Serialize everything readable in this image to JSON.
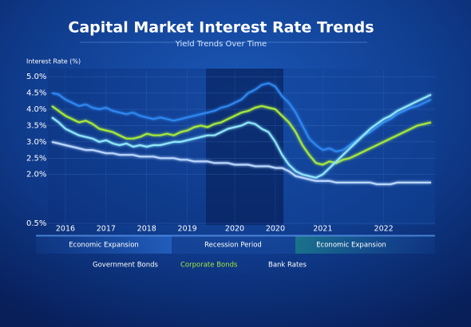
{
  "chart_data": {
    "type": "line",
    "title": "Capital Market Interest Rate Trends",
    "subtitle": "Yield Trends Over Time",
    "y_label": "Interest Rate (%)",
    "categories": [
      null,
      null,
      "2016",
      null,
      null,
      null,
      null,
      null,
      "2017",
      null,
      null,
      null,
      null,
      null,
      "2018",
      null,
      null,
      null,
      null,
      null,
      "2019",
      null,
      null,
      null,
      null,
      null,
      null,
      "2020",
      null,
      null,
      null,
      null,
      null,
      "2020",
      null,
      null,
      null,
      null,
      null,
      null,
      "2021",
      null,
      null,
      null,
      null,
      null,
      null,
      null,
      null,
      "2022",
      null,
      null,
      null,
      null,
      null,
      null,
      null
    ],
    "ylim": [
      0.5,
      5.2
    ],
    "yticks": [
      {
        "value": 5.0,
        "label": "5.0%"
      },
      {
        "value": 4.5,
        "label": "4.5%"
      },
      {
        "value": 4.0,
        "label": "4.0%"
      },
      {
        "value": 3.5,
        "label": "3.5%"
      },
      {
        "value": 3.0,
        "label": "3.0%"
      },
      {
        "value": 2.5,
        "label": "2.5%"
      },
      {
        "value": 2.0,
        "label": "2.0%"
      },
      {
        "value": 0.5,
        "label": "0.5%"
      }
    ],
    "grid": true,
    "annotations": [
      "Economic Expansion",
      "Recession Period",
      "Economic Expansion"
    ],
    "series": [
      {
        "name": "Government Bonds",
        "color": "#2f86f0",
        "values": [
          4.5,
          4.45,
          4.3,
          4.2,
          4.1,
          4.15,
          4.05,
          4.0,
          4.05,
          3.95,
          3.9,
          3.85,
          3.9,
          3.8,
          3.75,
          3.7,
          3.75,
          3.7,
          3.65,
          3.7,
          3.75,
          3.8,
          3.85,
          3.9,
          3.95,
          4.05,
          4.1,
          4.2,
          4.3,
          4.5,
          4.6,
          4.75,
          4.8,
          4.7,
          4.4,
          4.2,
          3.9,
          3.5,
          3.1,
          2.9,
          2.75,
          2.8,
          2.7,
          2.75,
          2.9,
          3.05,
          3.2,
          3.3,
          3.45,
          3.6,
          3.7,
          3.85,
          3.95,
          4.05,
          4.1,
          4.2,
          4.3
        ]
      },
      {
        "name": "Corporate Bonds",
        "color": "#a6e83c",
        "values": [
          4.1,
          3.95,
          3.8,
          3.7,
          3.6,
          3.65,
          3.55,
          3.4,
          3.35,
          3.3,
          3.2,
          3.1,
          3.1,
          3.15,
          3.25,
          3.2,
          3.2,
          3.25,
          3.2,
          3.3,
          3.35,
          3.45,
          3.5,
          3.45,
          3.55,
          3.6,
          3.7,
          3.8,
          3.9,
          3.95,
          4.05,
          4.1,
          4.05,
          4.0,
          3.8,
          3.6,
          3.3,
          2.9,
          2.6,
          2.35,
          2.3,
          2.4,
          2.35,
          2.45,
          2.5,
          2.6,
          2.7,
          2.8,
          2.9,
          3.0,
          3.1,
          3.2,
          3.3,
          3.4,
          3.5,
          3.55,
          3.6
        ]
      },
      {
        "name": "Bank Rates",
        "color": "#8fe6fb",
        "values": [
          3.75,
          3.6,
          3.4,
          3.3,
          3.2,
          3.15,
          3.1,
          3.0,
          3.05,
          2.95,
          2.9,
          2.95,
          2.85,
          2.9,
          2.85,
          2.9,
          2.9,
          2.95,
          3.0,
          3.0,
          3.05,
          3.1,
          3.15,
          3.2,
          3.2,
          3.3,
          3.4,
          3.45,
          3.5,
          3.6,
          3.55,
          3.4,
          3.3,
          3.0,
          2.6,
          2.3,
          2.1,
          2.0,
          1.95,
          1.9,
          2.0,
          2.2,
          2.4,
          2.6,
          2.8,
          3.0,
          3.2,
          3.4,
          3.55,
          3.7,
          3.8,
          3.95,
          4.05,
          4.15,
          4.25,
          4.35,
          4.45
        ]
      },
      {
        "color": "#b9d6ff",
        "values": [
          3.0,
          2.95,
          2.9,
          2.85,
          2.8,
          2.75,
          2.75,
          2.7,
          2.65,
          2.65,
          2.6,
          2.6,
          2.6,
          2.55,
          2.55,
          2.55,
          2.5,
          2.5,
          2.5,
          2.45,
          2.45,
          2.4,
          2.4,
          2.4,
          2.35,
          2.35,
          2.35,
          2.3,
          2.3,
          2.3,
          2.25,
          2.25,
          2.25,
          2.2,
          2.2,
          2.1,
          1.95,
          1.9,
          1.85,
          1.8,
          1.8,
          1.8,
          1.75,
          1.75,
          1.75,
          1.75,
          1.75,
          1.75,
          1.7,
          1.7,
          1.7,
          1.75,
          1.75,
          1.75,
          1.75,
          1.75,
          1.75
        ]
      }
    ]
  }
}
